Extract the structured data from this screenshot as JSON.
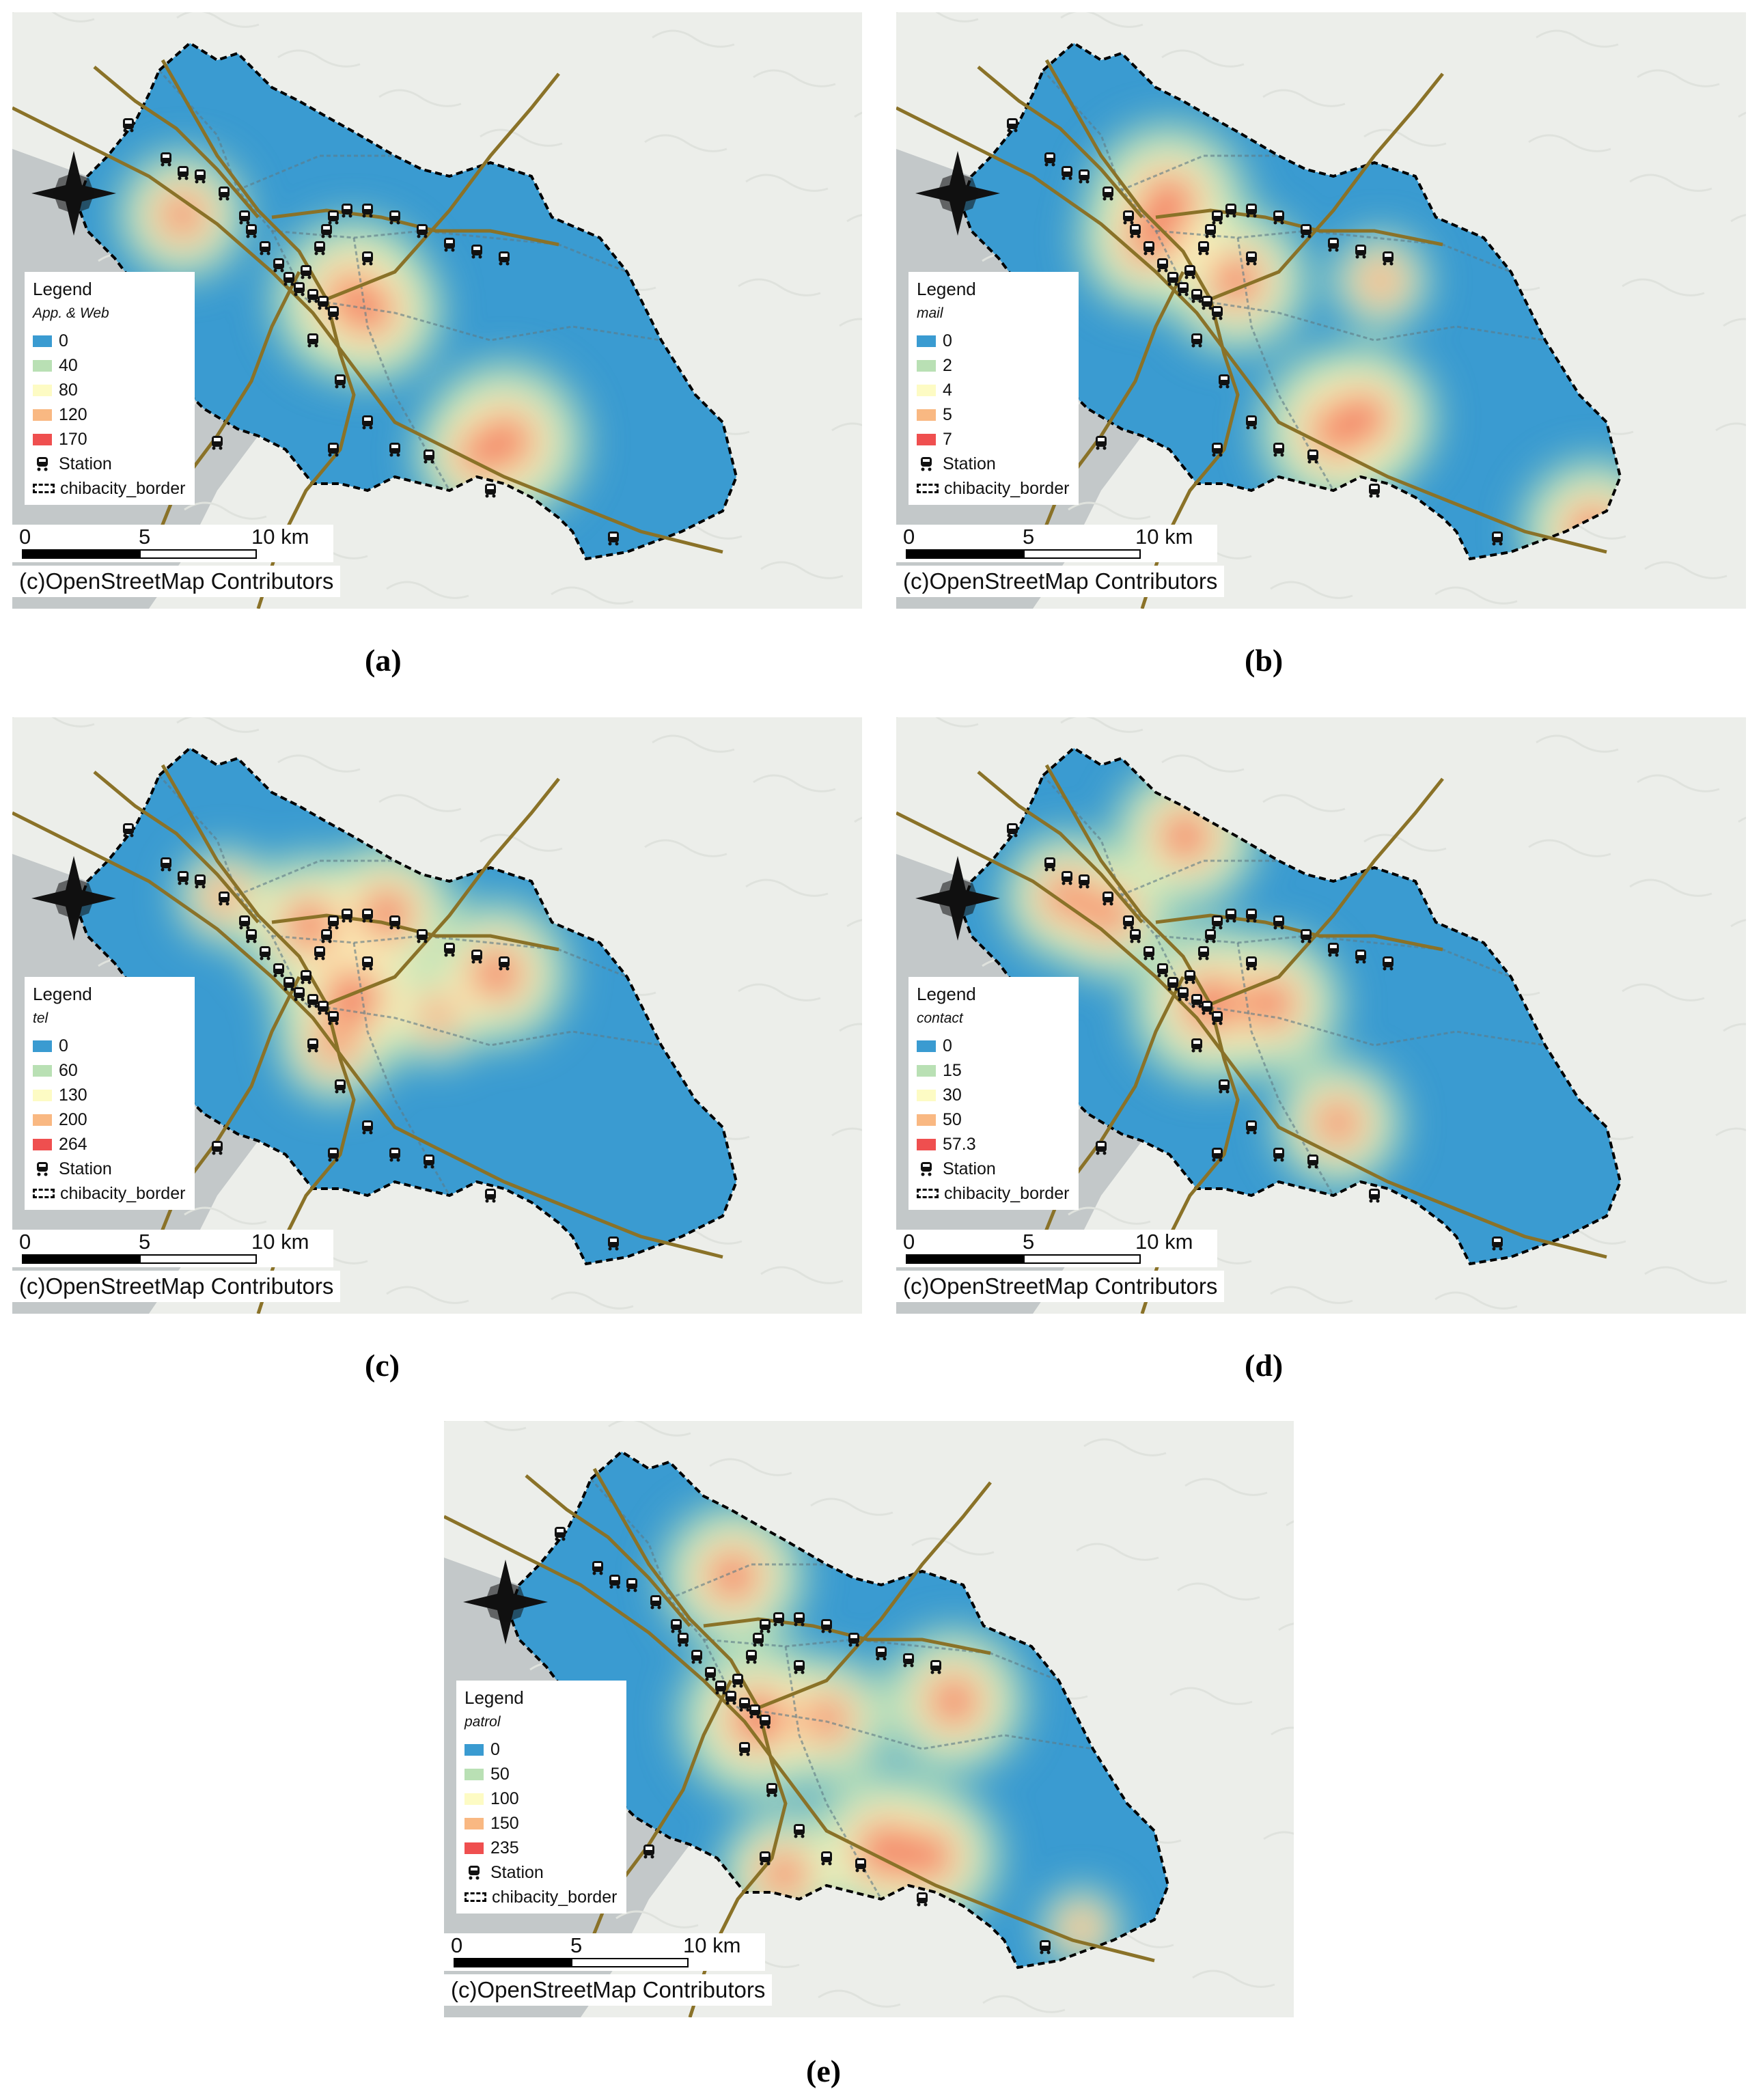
{
  "panels": [
    {
      "caption": "(a)",
      "legend_title": "Legend",
      "variable": "App. & Web",
      "classes": [
        {
          "label": "0",
          "color": "#3a9bd1"
        },
        {
          "label": "40",
          "color": "#b9e0b4"
        },
        {
          "label": "80",
          "color": "#fdfbc4"
        },
        {
          "label": "120",
          "color": "#f9b882"
        },
        {
          "label": "170",
          "color": "#ef4f4f"
        }
      ],
      "station_label": "Station",
      "border_label": "chibacity_border",
      "hotspots": [
        {
          "lon": 0.2,
          "lat": 0.34,
          "v": 0.8
        },
        {
          "lon": 0.4,
          "lat": 0.48,
          "v": 1.0
        },
        {
          "lon": 0.42,
          "lat": 0.5,
          "v": 0.9
        },
        {
          "lon": 0.58,
          "lat": 0.72,
          "v": 1.0
        },
        {
          "lon": 0.55,
          "lat": 0.74,
          "v": 0.8
        }
      ]
    },
    {
      "caption": "(b)",
      "legend_title": "Legend",
      "variable": "mail",
      "classes": [
        {
          "label": "0",
          "color": "#3a9bd1"
        },
        {
          "label": "2",
          "color": "#b9e0b4"
        },
        {
          "label": "4",
          "color": "#fdfbc4"
        },
        {
          "label": "5",
          "color": "#f9b882"
        },
        {
          "label": "7",
          "color": "#ef4f4f"
        }
      ],
      "station_label": "Station",
      "border_label": "chibacity_border",
      "hotspots": [
        {
          "lon": 0.32,
          "lat": 0.32,
          "v": 1.0
        },
        {
          "lon": 0.3,
          "lat": 0.38,
          "v": 0.9
        },
        {
          "lon": 0.4,
          "lat": 0.45,
          "v": 0.9
        },
        {
          "lon": 0.52,
          "lat": 0.7,
          "v": 1.0
        },
        {
          "lon": 0.55,
          "lat": 0.68,
          "v": 0.9
        },
        {
          "lon": 0.82,
          "lat": 0.87,
          "v": 0.9
        },
        {
          "lon": 0.57,
          "lat": 0.45,
          "v": 0.6
        }
      ]
    },
    {
      "caption": "(c)",
      "legend_title": "Legend",
      "variable": "tel",
      "classes": [
        {
          "label": "0",
          "color": "#3a9bd1"
        },
        {
          "label": "60",
          "color": "#b9e0b4"
        },
        {
          "label": "130",
          "color": "#fdfbc4"
        },
        {
          "label": "200",
          "color": "#f9b882"
        },
        {
          "label": "264",
          "color": "#ef4f4f"
        }
      ],
      "station_label": "Station",
      "border_label": "chibacity_border",
      "hotspots": [
        {
          "lon": 0.35,
          "lat": 0.35,
          "v": 0.9
        },
        {
          "lon": 0.4,
          "lat": 0.47,
          "v": 1.0
        },
        {
          "lon": 0.44,
          "lat": 0.33,
          "v": 0.9
        },
        {
          "lon": 0.57,
          "lat": 0.43,
          "v": 0.9
        },
        {
          "lon": 0.38,
          "lat": 0.55,
          "v": 0.7
        },
        {
          "lon": 0.5,
          "lat": 0.5,
          "v": 0.6
        },
        {
          "lon": 0.25,
          "lat": 0.3,
          "v": 0.6
        }
      ]
    },
    {
      "caption": "(d)",
      "legend_title": "Legend",
      "variable": "contact",
      "classes": [
        {
          "label": "0",
          "color": "#3a9bd1"
        },
        {
          "label": "15",
          "color": "#b9e0b4"
        },
        {
          "label": "30",
          "color": "#fdfbc4"
        },
        {
          "label": "50",
          "color": "#f9b882"
        },
        {
          "label": "57.3",
          "color": "#ef4f4f"
        }
      ],
      "station_label": "Station",
      "border_label": "chibacity_border",
      "hotspots": [
        {
          "lon": 0.34,
          "lat": 0.2,
          "v": 0.9
        },
        {
          "lon": 0.2,
          "lat": 0.3,
          "v": 0.8
        },
        {
          "lon": 0.25,
          "lat": 0.33,
          "v": 0.8
        },
        {
          "lon": 0.37,
          "lat": 0.48,
          "v": 1.0
        },
        {
          "lon": 0.44,
          "lat": 0.48,
          "v": 0.9
        },
        {
          "lon": 0.52,
          "lat": 0.68,
          "v": 0.8
        }
      ]
    },
    {
      "caption": "(e)",
      "legend_title": "Legend",
      "variable": "patrol",
      "classes": [
        {
          "label": "0",
          "color": "#3a9bd1"
        },
        {
          "label": "50",
          "color": "#b9e0b4"
        },
        {
          "label": "100",
          "color": "#fdfbc4"
        },
        {
          "label": "150",
          "color": "#f9b882"
        },
        {
          "label": "235",
          "color": "#ef4f4f"
        }
      ],
      "station_label": "Station",
      "border_label": "chibacity_border",
      "hotspots": [
        {
          "lon": 0.34,
          "lat": 0.26,
          "v": 0.9
        },
        {
          "lon": 0.37,
          "lat": 0.5,
          "v": 1.0
        },
        {
          "lon": 0.45,
          "lat": 0.5,
          "v": 0.8
        },
        {
          "lon": 0.6,
          "lat": 0.47,
          "v": 0.9
        },
        {
          "lon": 0.52,
          "lat": 0.72,
          "v": 1.0
        },
        {
          "lon": 0.57,
          "lat": 0.73,
          "v": 0.9
        },
        {
          "lon": 0.4,
          "lat": 0.76,
          "v": 0.8
        },
        {
          "lon": 0.75,
          "lat": 0.85,
          "v": 0.5
        }
      ]
    }
  ],
  "scale_bar": {
    "label_0": "0",
    "label_5": "5",
    "label_10": "10 km"
  },
  "attribution": "(c)OpenStreetMap Contributors",
  "colors": {
    "land": "#eceeea",
    "sea": "#c3c8c9",
    "rail": "#8a7228",
    "border": "#000000",
    "ward": "#5e7a86",
    "low": "#3a9bd1"
  }
}
